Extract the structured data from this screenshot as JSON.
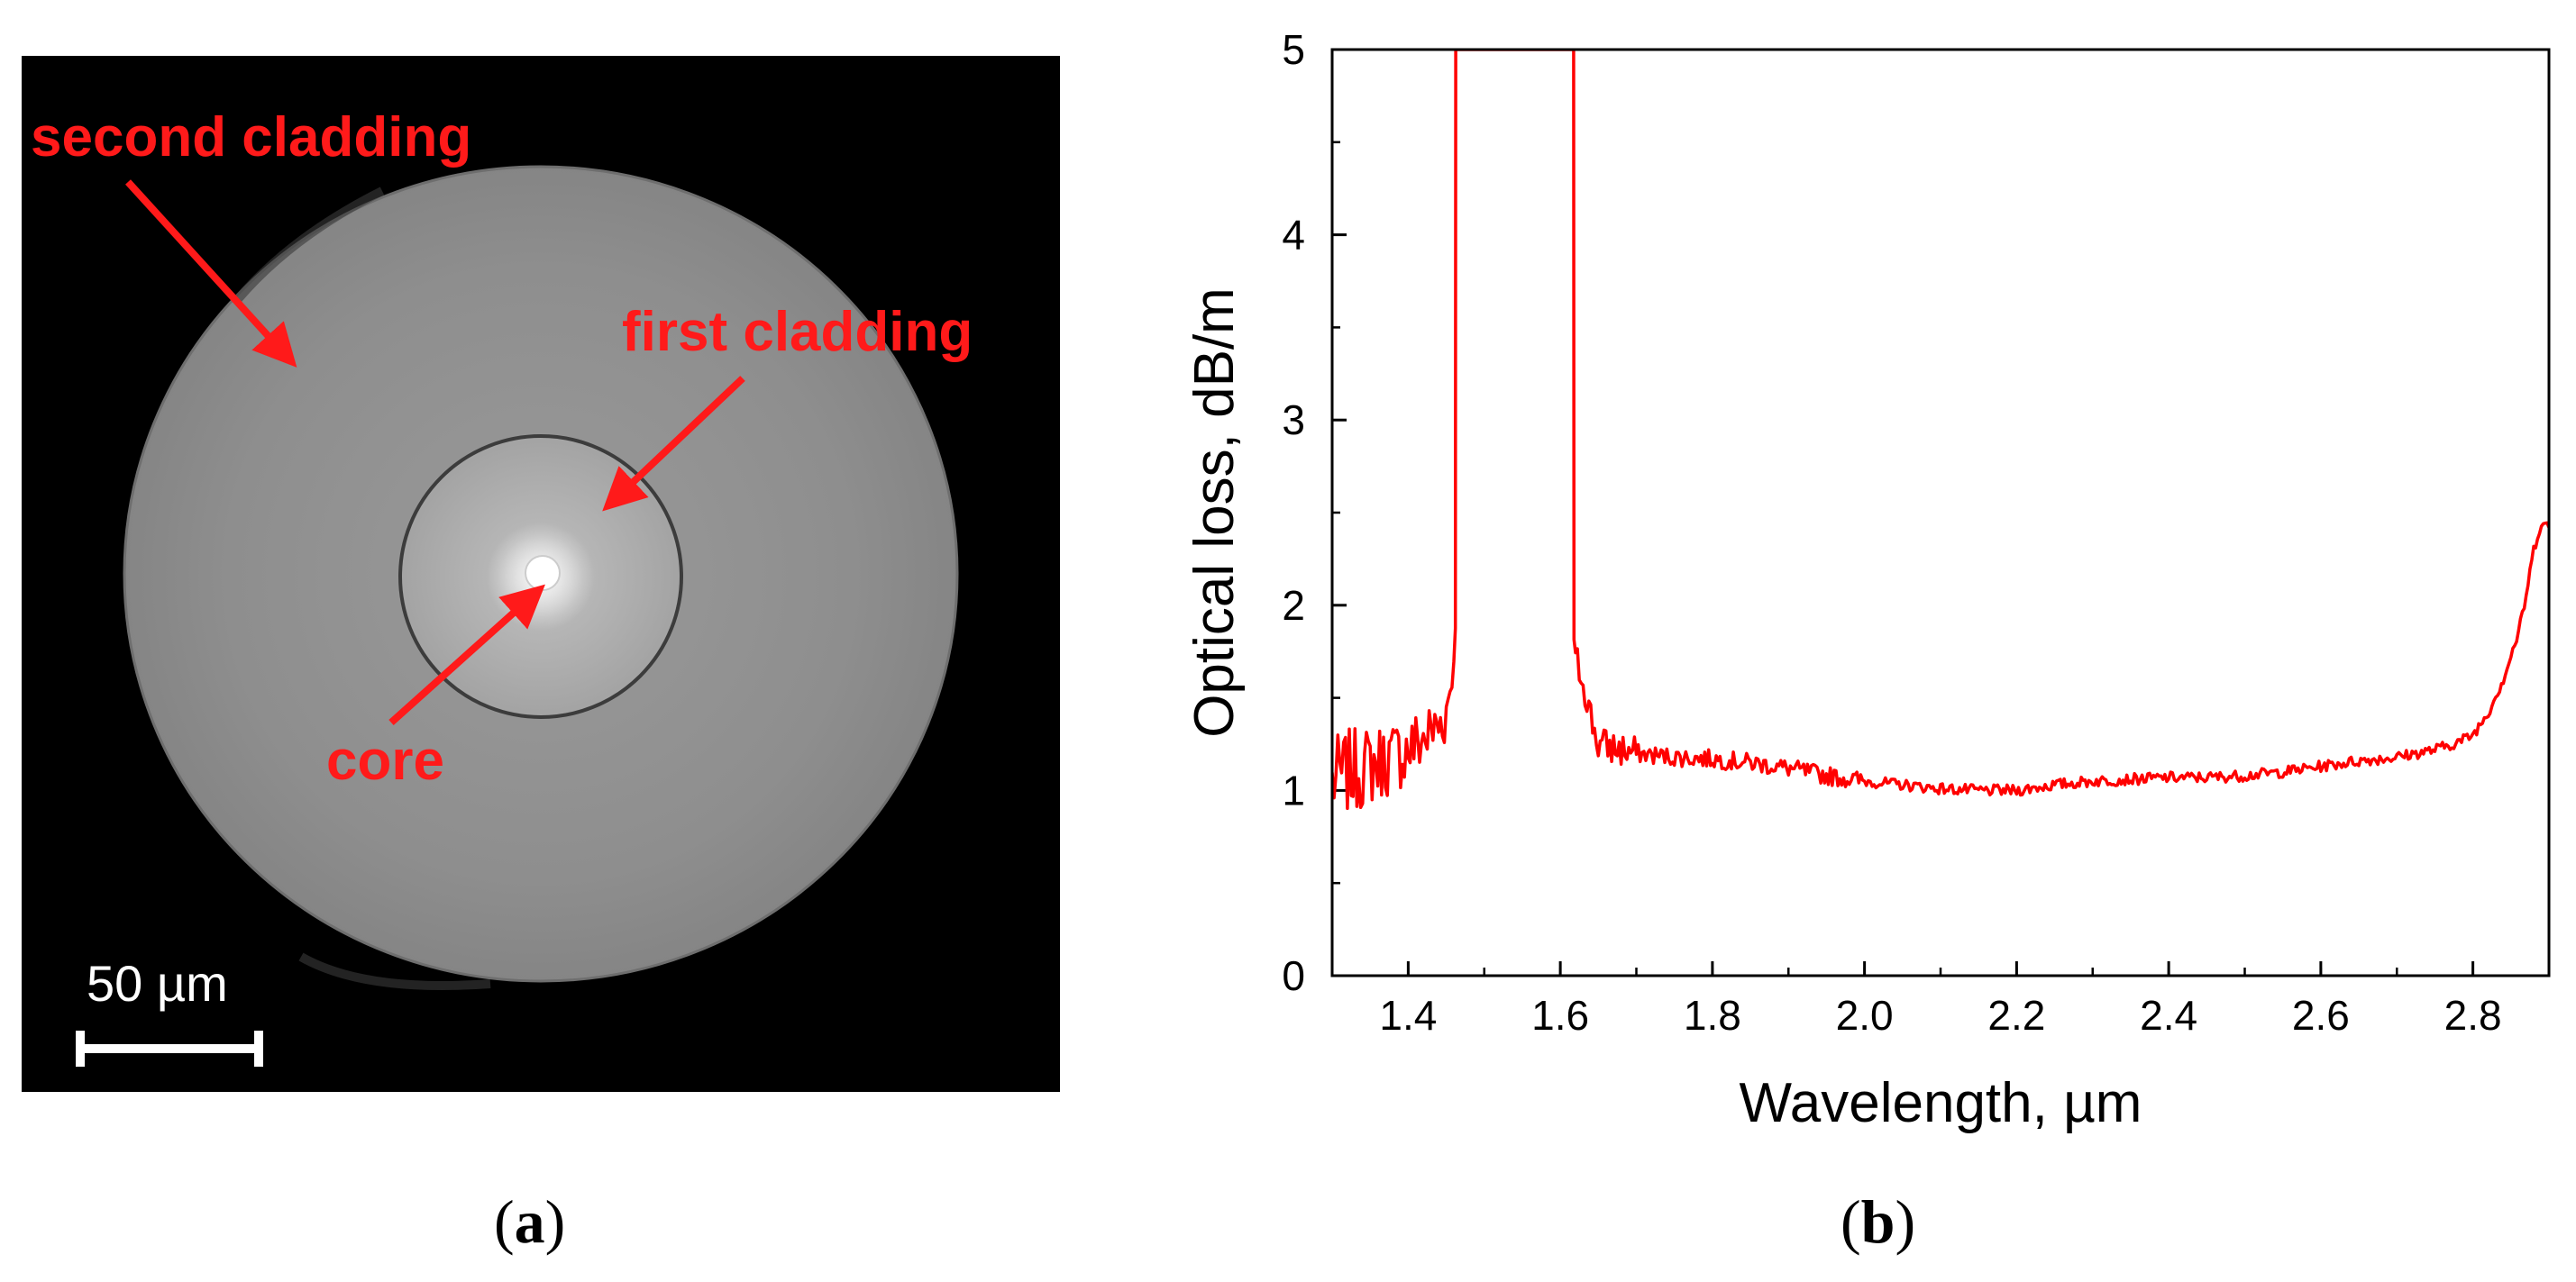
{
  "panel_a": {
    "labels": {
      "second_cladding": "second cladding",
      "first_cladding": "first cladding",
      "core": "core"
    },
    "scale_bar": "50 µm",
    "colors": {
      "label": "#ff1a1a",
      "background": "#000000",
      "outer_disk": "#8c8c8c",
      "inner_disk": "#a8a8a8",
      "core": "#ffffff"
    }
  },
  "captions": {
    "a_open": "(",
    "a_letter": "a",
    "a_close": ")",
    "b_open": "(",
    "b_letter": "b",
    "b_close": ")"
  },
  "chart_data": {
    "type": "line",
    "title": "",
    "xlabel": "Wavelength, µm",
    "ylabel": "Optical loss, dB/m",
    "xlim": [
      1.3,
      2.9
    ],
    "ylim": [
      0,
      5
    ],
    "xticks": [
      1.4,
      1.6,
      1.8,
      2.0,
      2.2,
      2.4,
      2.6,
      2.8
    ],
    "xtick_labels": [
      "1.4",
      "1.6",
      "1.8",
      "2.0",
      "2.2",
      "2.4",
      "2.6",
      "2.8"
    ],
    "yticks": [
      0,
      1,
      2,
      3,
      4,
      5
    ],
    "ytick_labels": [
      "0",
      "1",
      "2",
      "3",
      "4",
      "5"
    ],
    "grid": false,
    "legend": "none",
    "series": [
      {
        "name": "Optical loss",
        "color": "#ff0000",
        "x": [
          1.3,
          1.32,
          1.34,
          1.36,
          1.38,
          1.4,
          1.42,
          1.44,
          1.45,
          1.455,
          1.46,
          1.462,
          1.4625,
          1.6175,
          1.618,
          1.62,
          1.63,
          1.64,
          1.65,
          1.7,
          1.75,
          1.8,
          1.85,
          1.9,
          1.95,
          2.0,
          2.05,
          2.1,
          2.15,
          2.2,
          2.25,
          2.3,
          2.35,
          2.4,
          2.45,
          2.5,
          2.55,
          2.6,
          2.65,
          2.7,
          2.75,
          2.78,
          2.8,
          2.82,
          2.84,
          2.86,
          2.87,
          2.88,
          2.89,
          2.9
        ],
        "y": [
          1.05,
          1.1,
          1.12,
          1.15,
          1.18,
          1.22,
          1.28,
          1.35,
          1.42,
          1.55,
          1.7,
          1.9,
          5.0,
          5.0,
          1.8,
          1.72,
          1.6,
          1.4,
          1.25,
          1.2,
          1.18,
          1.17,
          1.15,
          1.12,
          1.08,
          1.05,
          1.03,
          1.01,
          1.0,
          1.0,
          1.03,
          1.05,
          1.06,
          1.07,
          1.07,
          1.08,
          1.1,
          1.13,
          1.16,
          1.18,
          1.22,
          1.26,
          1.3,
          1.42,
          1.6,
          1.85,
          2.05,
          2.3,
          2.45,
          2.42
        ]
      }
    ]
  }
}
